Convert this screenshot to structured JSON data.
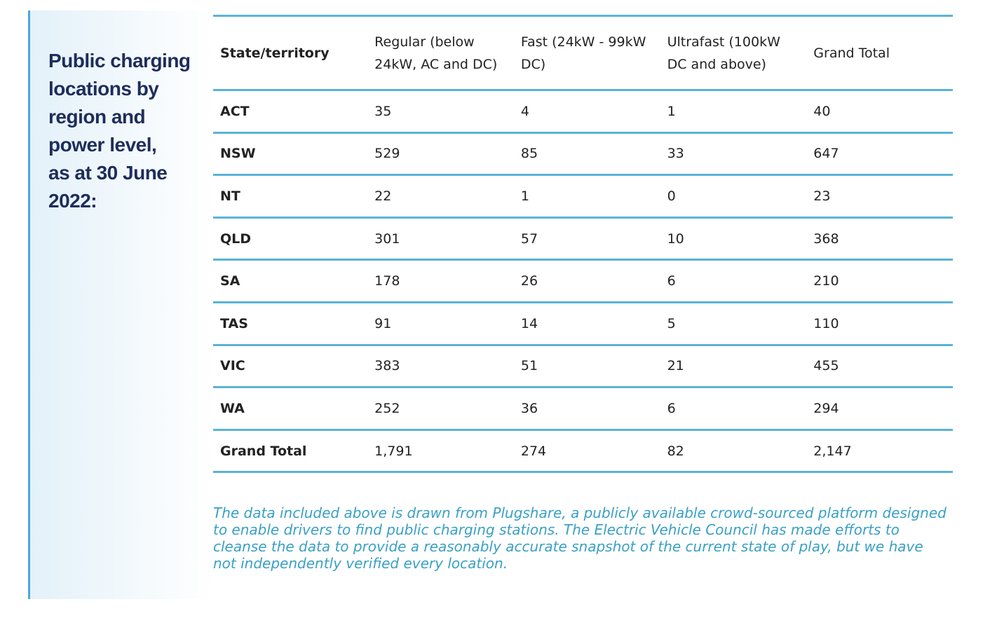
{
  "sidebar": {
    "title_lines": [
      "Public charging",
      "locations by",
      "region and",
      "power level,",
      "as at 30 June",
      "2022:"
    ]
  },
  "table": {
    "headers": [
      "State/territory",
      "Regular (below 24kW, AC and DC)",
      "Fast (24kW - 99kW DC)",
      "Ultrafast (100kW DC and above)",
      "Grand Total"
    ],
    "rows": [
      [
        "ACT",
        "35",
        "4",
        "1",
        "40"
      ],
      [
        "NSW",
        "529",
        "85",
        "33",
        "647"
      ],
      [
        "NT",
        "22",
        "1",
        "0",
        "23"
      ],
      [
        "QLD",
        "301",
        "57",
        "10",
        "368"
      ],
      [
        "SA",
        "178",
        "26",
        "6",
        "210"
      ],
      [
        "TAS",
        "91",
        "14",
        "5",
        "110"
      ],
      [
        "VIC",
        "383",
        "51",
        "21",
        "455"
      ],
      [
        "WA",
        "252",
        "36",
        "6",
        "294"
      ],
      [
        "Grand Total",
        "1,791",
        "274",
        "82",
        "2,147"
      ]
    ]
  },
  "footnote": "The data included above is drawn from Plugshare, a publicly available crowd-sourced platform designed to enable drivers to find public charging stations. The Electric Vehicle Council has made efforts to cleanse the data to provide a reasonably accurate snapshot of the current state of play, but we have not independently verified every location."
}
